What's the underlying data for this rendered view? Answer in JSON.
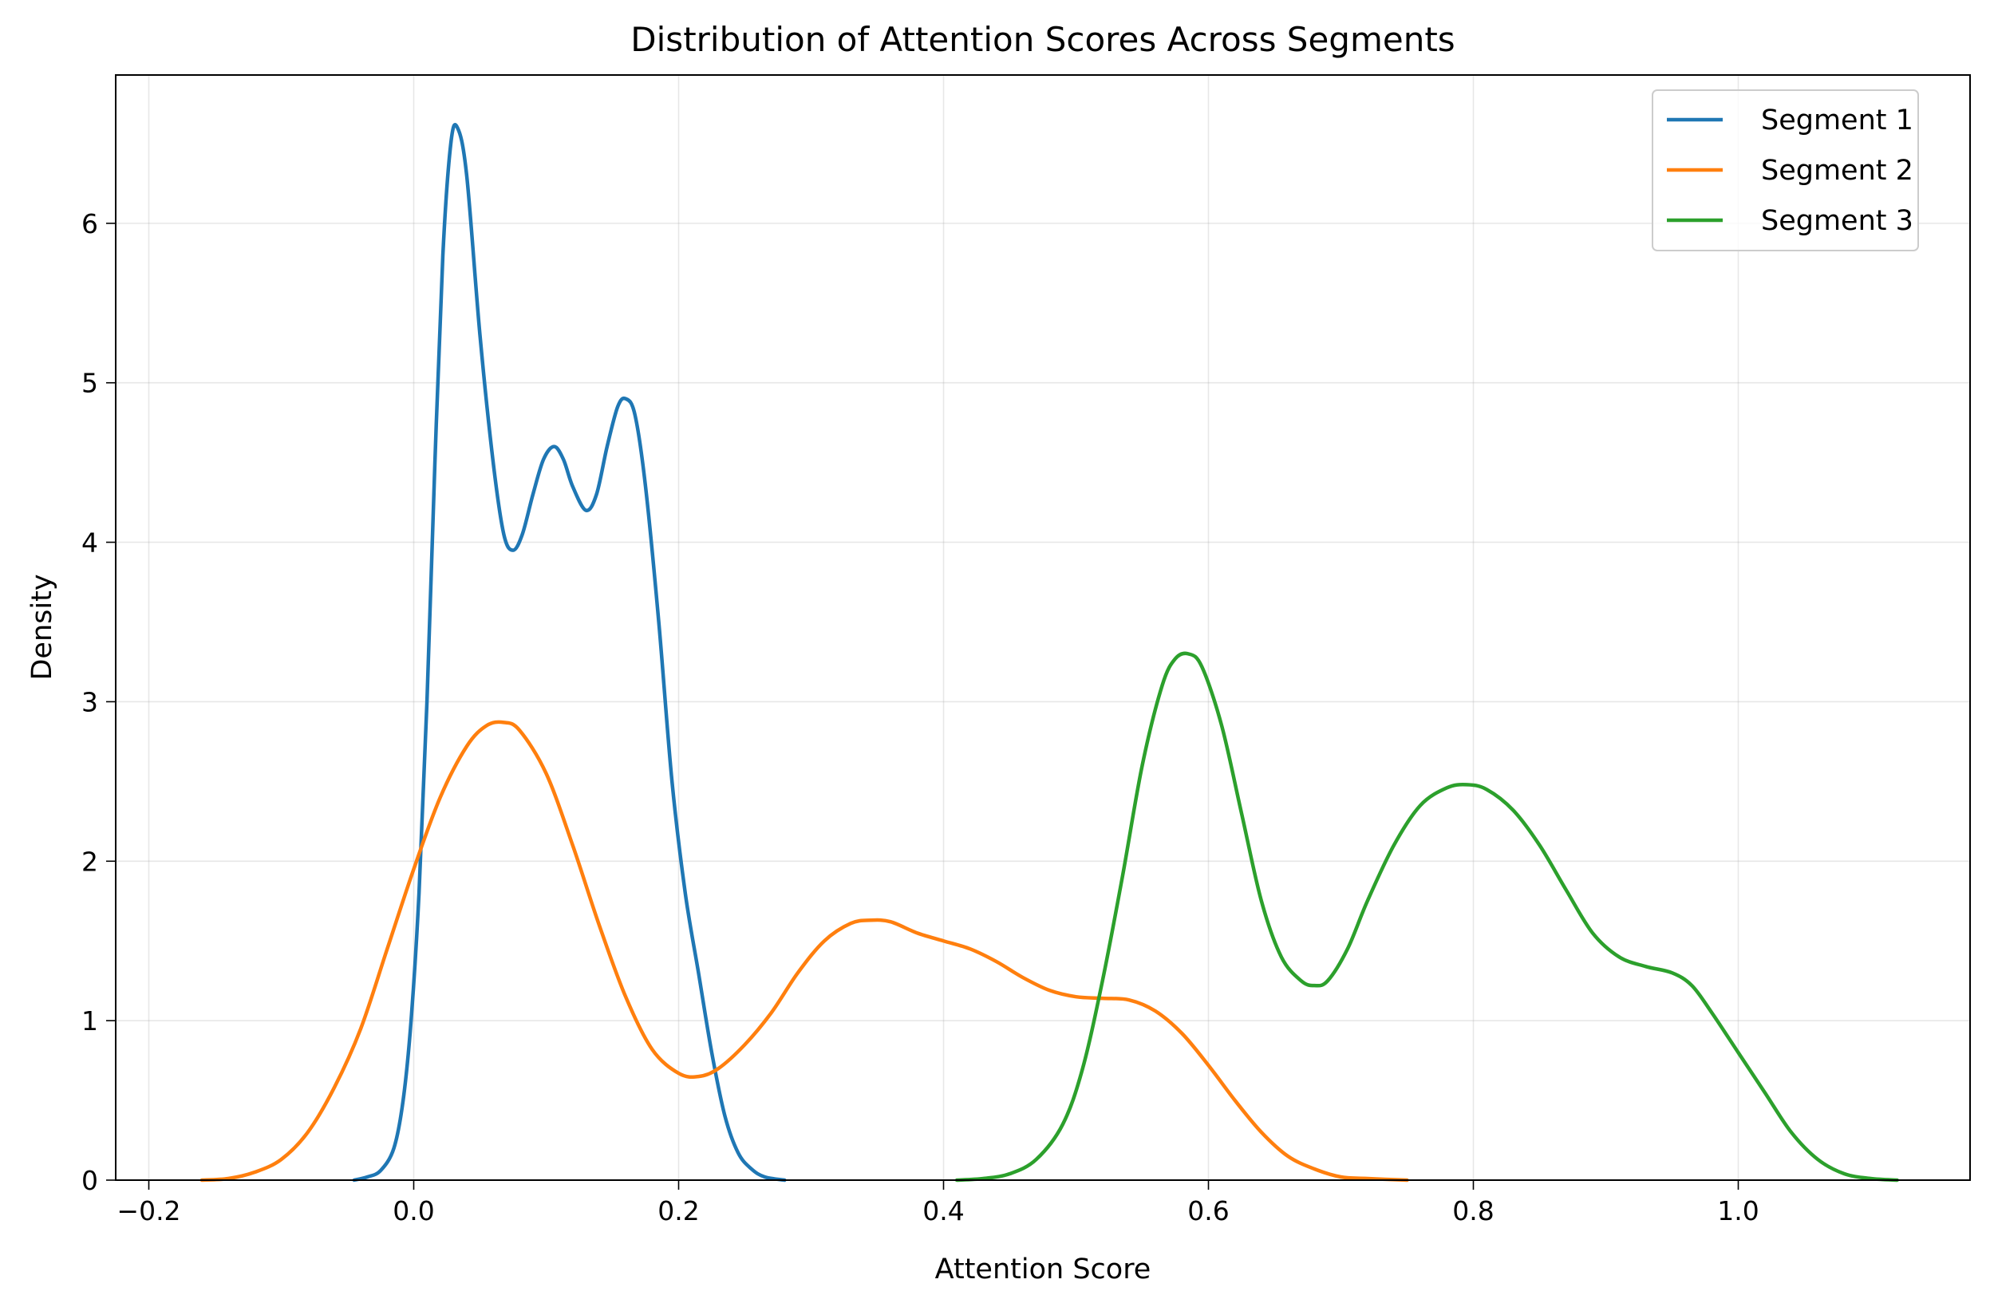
{
  "chart_data": {
    "type": "line",
    "title": "Distribution of Attention Scores Across Segments",
    "xlabel": "Attention Score",
    "ylabel": "Density",
    "xlim": [
      -0.225,
      1.175
    ],
    "ylim": [
      0,
      6.93
    ],
    "xticks": [
      -0.2,
      0.0,
      0.2,
      0.4,
      0.6,
      0.8,
      1.0
    ],
    "xtick_labels": [
      "−0.2",
      "0.0",
      "0.2",
      "0.4",
      "0.6",
      "0.8",
      "1.0"
    ],
    "yticks": [
      0,
      1,
      2,
      3,
      4,
      5,
      6
    ],
    "ytick_labels": [
      "0",
      "1",
      "2",
      "3",
      "4",
      "5",
      "6"
    ],
    "grid": true,
    "legend_position": "top-right",
    "series": [
      {
        "name": "Segment 1",
        "color": "#1f77b4",
        "points": [
          [
            -0.045,
            0.0
          ],
          [
            -0.035,
            0.02
          ],
          [
            -0.025,
            0.06
          ],
          [
            -0.015,
            0.2
          ],
          [
            -0.008,
            0.5
          ],
          [
            -0.002,
            1.0
          ],
          [
            0.004,
            1.8
          ],
          [
            0.01,
            3.0
          ],
          [
            0.016,
            4.5
          ],
          [
            0.022,
            5.8
          ],
          [
            0.028,
            6.5
          ],
          [
            0.033,
            6.6
          ],
          [
            0.04,
            6.3
          ],
          [
            0.05,
            5.3
          ],
          [
            0.06,
            4.5
          ],
          [
            0.068,
            4.05
          ],
          [
            0.075,
            3.95
          ],
          [
            0.082,
            4.05
          ],
          [
            0.09,
            4.3
          ],
          [
            0.098,
            4.52
          ],
          [
            0.106,
            4.6
          ],
          [
            0.113,
            4.52
          ],
          [
            0.12,
            4.35
          ],
          [
            0.13,
            4.2
          ],
          [
            0.138,
            4.3
          ],
          [
            0.146,
            4.6
          ],
          [
            0.154,
            4.85
          ],
          [
            0.16,
            4.9
          ],
          [
            0.167,
            4.8
          ],
          [
            0.175,
            4.35
          ],
          [
            0.185,
            3.5
          ],
          [
            0.195,
            2.5
          ],
          [
            0.205,
            1.8
          ],
          [
            0.215,
            1.3
          ],
          [
            0.225,
            0.8
          ],
          [
            0.235,
            0.4
          ],
          [
            0.245,
            0.17
          ],
          [
            0.255,
            0.07
          ],
          [
            0.265,
            0.02
          ],
          [
            0.28,
            0.0
          ]
        ]
      },
      {
        "name": "Segment 2",
        "color": "#ff7f0e",
        "points": [
          [
            -0.16,
            0.0
          ],
          [
            -0.14,
            0.01
          ],
          [
            -0.12,
            0.05
          ],
          [
            -0.1,
            0.13
          ],
          [
            -0.08,
            0.3
          ],
          [
            -0.06,
            0.58
          ],
          [
            -0.04,
            0.95
          ],
          [
            -0.02,
            1.45
          ],
          [
            0.0,
            1.95
          ],
          [
            0.02,
            2.4
          ],
          [
            0.04,
            2.72
          ],
          [
            0.055,
            2.85
          ],
          [
            0.068,
            2.87
          ],
          [
            0.08,
            2.82
          ],
          [
            0.1,
            2.55
          ],
          [
            0.12,
            2.1
          ],
          [
            0.14,
            1.6
          ],
          [
            0.16,
            1.15
          ],
          [
            0.18,
            0.82
          ],
          [
            0.2,
            0.67
          ],
          [
            0.215,
            0.65
          ],
          [
            0.23,
            0.7
          ],
          [
            0.25,
            0.85
          ],
          [
            0.27,
            1.05
          ],
          [
            0.29,
            1.3
          ],
          [
            0.31,
            1.5
          ],
          [
            0.33,
            1.61
          ],
          [
            0.345,
            1.63
          ],
          [
            0.36,
            1.62
          ],
          [
            0.38,
            1.55
          ],
          [
            0.4,
            1.5
          ],
          [
            0.42,
            1.45
          ],
          [
            0.44,
            1.37
          ],
          [
            0.46,
            1.27
          ],
          [
            0.48,
            1.19
          ],
          [
            0.5,
            1.15
          ],
          [
            0.52,
            1.14
          ],
          [
            0.54,
            1.13
          ],
          [
            0.56,
            1.06
          ],
          [
            0.58,
            0.92
          ],
          [
            0.6,
            0.72
          ],
          [
            0.62,
            0.5
          ],
          [
            0.64,
            0.3
          ],
          [
            0.66,
            0.15
          ],
          [
            0.68,
            0.07
          ],
          [
            0.7,
            0.02
          ],
          [
            0.72,
            0.01
          ],
          [
            0.75,
            0.0
          ]
        ]
      },
      {
        "name": "Segment 3",
        "color": "#2ca02c",
        "points": [
          [
            0.41,
            0.0
          ],
          [
            0.43,
            0.01
          ],
          [
            0.45,
            0.04
          ],
          [
            0.47,
            0.13
          ],
          [
            0.49,
            0.35
          ],
          [
            0.505,
            0.7
          ],
          [
            0.52,
            1.25
          ],
          [
            0.535,
            1.9
          ],
          [
            0.55,
            2.6
          ],
          [
            0.565,
            3.1
          ],
          [
            0.575,
            3.27
          ],
          [
            0.585,
            3.3
          ],
          [
            0.595,
            3.22
          ],
          [
            0.61,
            2.85
          ],
          [
            0.625,
            2.3
          ],
          [
            0.64,
            1.75
          ],
          [
            0.655,
            1.4
          ],
          [
            0.67,
            1.25
          ],
          [
            0.68,
            1.22
          ],
          [
            0.69,
            1.25
          ],
          [
            0.705,
            1.45
          ],
          [
            0.72,
            1.75
          ],
          [
            0.74,
            2.1
          ],
          [
            0.76,
            2.35
          ],
          [
            0.78,
            2.46
          ],
          [
            0.795,
            2.48
          ],
          [
            0.81,
            2.45
          ],
          [
            0.83,
            2.32
          ],
          [
            0.85,
            2.1
          ],
          [
            0.87,
            1.82
          ],
          [
            0.89,
            1.55
          ],
          [
            0.91,
            1.4
          ],
          [
            0.93,
            1.34
          ],
          [
            0.95,
            1.3
          ],
          [
            0.965,
            1.22
          ],
          [
            0.98,
            1.05
          ],
          [
            1.0,
            0.8
          ],
          [
            1.02,
            0.55
          ],
          [
            1.04,
            0.3
          ],
          [
            1.06,
            0.13
          ],
          [
            1.08,
            0.04
          ],
          [
            1.1,
            0.01
          ],
          [
            1.12,
            0.0
          ]
        ]
      }
    ]
  }
}
